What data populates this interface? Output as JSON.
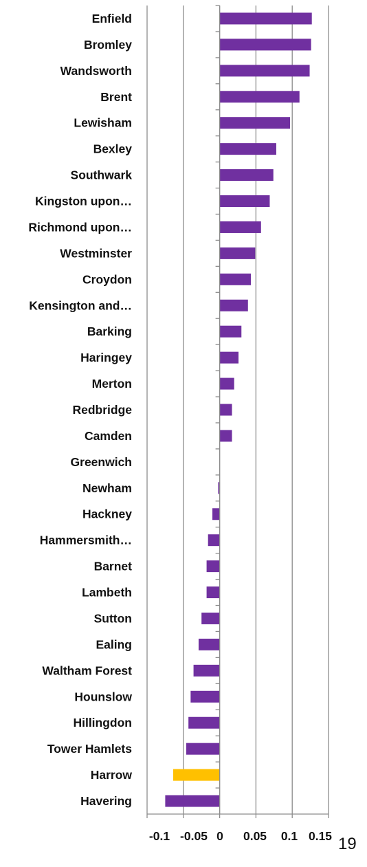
{
  "chart_data": {
    "type": "bar",
    "orientation": "horizontal",
    "categories": [
      "Enfield",
      "Bromley",
      "Wandsworth",
      "Brent",
      "Lewisham",
      "Bexley",
      "Southwark",
      "Kingston upon…",
      "Richmond upon…",
      "Westminster",
      "Croydon",
      "Kensington and…",
      "Barking",
      "Haringey",
      "Merton",
      "Redbridge",
      "Camden",
      "Greenwich",
      "Newham",
      "Hackney",
      "Hammersmith…",
      "Barnet",
      "Lambeth",
      "Sutton",
      "Ealing",
      "Waltham Forest",
      "Hounslow",
      "Hillingdon",
      "Tower Hamlets",
      "Harrow",
      "Havering"
    ],
    "values": [
      0.127,
      0.126,
      0.124,
      0.11,
      0.097,
      0.078,
      0.074,
      0.069,
      0.057,
      0.049,
      0.043,
      0.039,
      0.03,
      0.026,
      0.02,
      0.017,
      0.017,
      0.0,
      -0.002,
      -0.01,
      -0.016,
      -0.018,
      -0.018,
      -0.025,
      -0.029,
      -0.036,
      -0.04,
      -0.043,
      -0.046,
      -0.064,
      -0.075
    ],
    "highlight_category": "Harrow",
    "bar_color": "#7030A0",
    "highlight_color": "#FFC000",
    "xlim": [
      -0.1,
      0.15
    ],
    "xticks": [
      -0.1,
      -0.05,
      0,
      0.05,
      0.1,
      0.15
    ],
    "xtick_labels": [
      "-0.1",
      "-0.05",
      "0",
      "0.05",
      "0.1",
      "0.15"
    ],
    "grid": "vertical",
    "grid_color": "#8C8C8C",
    "title": "",
    "xlabel": "",
    "ylabel": ""
  },
  "page_number": "19"
}
